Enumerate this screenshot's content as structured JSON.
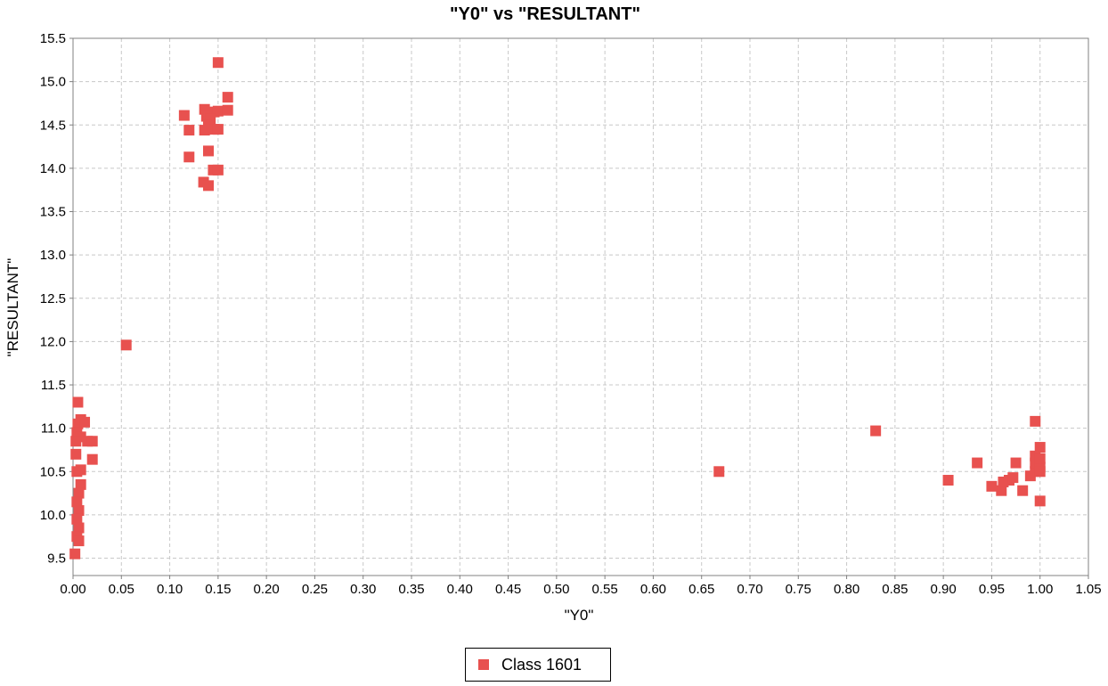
{
  "chart_data": {
    "type": "scatter",
    "title": "\"Y0\" vs \"RESULTANT\"",
    "xlabel": "\"Y0\"",
    "ylabel": "\"RESULTANT\"",
    "xlim": [
      0.0,
      1.05
    ],
    "ylim": [
      9.3,
      15.5
    ],
    "xticks": [
      "0.00",
      "0.05",
      "0.10",
      "0.15",
      "0.20",
      "0.25",
      "0.30",
      "0.35",
      "0.40",
      "0.45",
      "0.50",
      "0.55",
      "0.60",
      "0.65",
      "0.70",
      "0.75",
      "0.80",
      "0.85",
      "0.90",
      "0.95",
      "1.00",
      "1.05"
    ],
    "yticks": [
      "9.5",
      "10.0",
      "10.5",
      "11.0",
      "11.5",
      "12.0",
      "12.5",
      "13.0",
      "13.5",
      "14.0",
      "14.5",
      "15.0",
      "15.5"
    ],
    "grid": true,
    "legend_position": "bottom-center",
    "series": [
      {
        "name": "Class 1601",
        "color": "#e8514f",
        "points": [
          [
            0.15,
            15.22
          ],
          [
            0.16,
            14.82
          ],
          [
            0.115,
            14.61
          ],
          [
            0.136,
            14.68
          ],
          [
            0.146,
            14.65
          ],
          [
            0.15,
            14.66
          ],
          [
            0.16,
            14.67
          ],
          [
            0.138,
            14.6
          ],
          [
            0.142,
            14.57
          ],
          [
            0.12,
            14.44
          ],
          [
            0.136,
            14.44
          ],
          [
            0.14,
            14.5
          ],
          [
            0.146,
            14.45
          ],
          [
            0.15,
            14.45
          ],
          [
            0.14,
            14.2
          ],
          [
            0.12,
            14.13
          ],
          [
            0.145,
            13.98
          ],
          [
            0.15,
            13.98
          ],
          [
            0.135,
            13.84
          ],
          [
            0.14,
            13.8
          ],
          [
            0.055,
            11.96
          ],
          [
            0.005,
            11.3
          ],
          [
            0.005,
            11.05
          ],
          [
            0.008,
            11.1
          ],
          [
            0.012,
            11.07
          ],
          [
            0.004,
            10.95
          ],
          [
            0.008,
            10.9
          ],
          [
            0.003,
            10.85
          ],
          [
            0.015,
            10.85
          ],
          [
            0.02,
            10.85
          ],
          [
            0.003,
            10.7
          ],
          [
            0.02,
            10.64
          ],
          [
            0.008,
            10.52
          ],
          [
            0.004,
            10.5
          ],
          [
            0.008,
            10.35
          ],
          [
            0.006,
            10.25
          ],
          [
            0.004,
            10.15
          ],
          [
            0.006,
            10.05
          ],
          [
            0.004,
            9.95
          ],
          [
            0.006,
            9.85
          ],
          [
            0.004,
            9.75
          ],
          [
            0.006,
            9.7
          ],
          [
            0.002,
            9.55
          ],
          [
            0.668,
            10.5
          ],
          [
            0.83,
            10.97
          ],
          [
            0.905,
            10.4
          ],
          [
            0.935,
            10.6
          ],
          [
            0.95,
            10.33
          ],
          [
            0.96,
            10.28
          ],
          [
            0.962,
            10.38
          ],
          [
            0.968,
            10.4
          ],
          [
            0.972,
            10.43
          ],
          [
            0.975,
            10.6
          ],
          [
            0.982,
            10.28
          ],
          [
            0.99,
            10.45
          ],
          [
            0.995,
            10.5
          ],
          [
            0.995,
            10.6
          ],
          [
            0.995,
            10.68
          ],
          [
            0.995,
            11.08
          ],
          [
            1.0,
            10.55
          ],
          [
            1.0,
            10.65
          ],
          [
            1.0,
            10.78
          ],
          [
            1.0,
            10.5
          ],
          [
            1.0,
            10.16
          ]
        ]
      }
    ]
  }
}
